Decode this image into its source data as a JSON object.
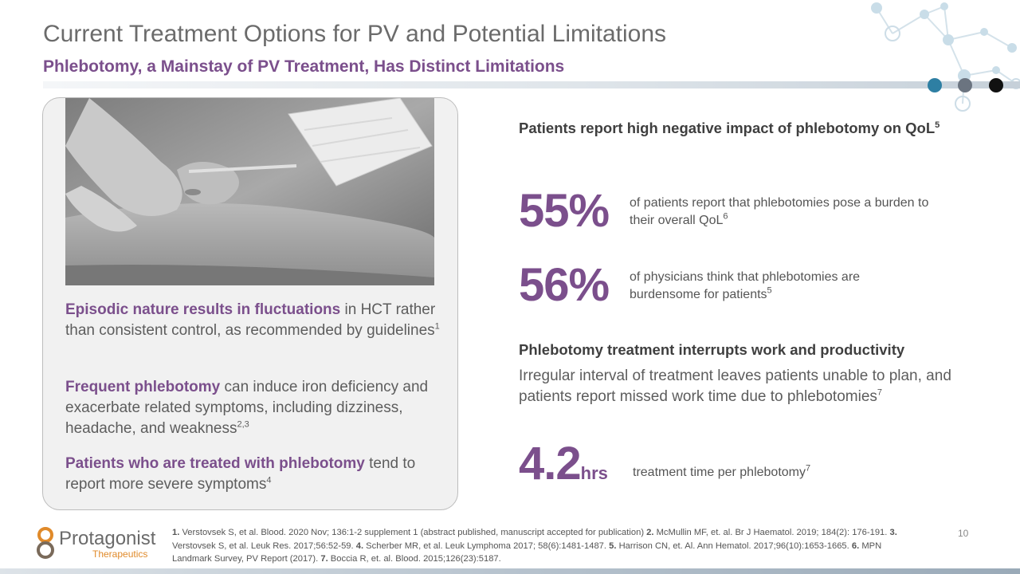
{
  "slide": {
    "title": "Current Treatment Options for PV and Potential Limitations",
    "subtitle": "Phlebotomy, a Mainstay of PV Treatment, Has Distinct Limitations",
    "page_number": "10"
  },
  "colors": {
    "accent_purple": "#7b4f8c",
    "dot_teal": "#2e7fa3",
    "dot_gray": "#6b7480",
    "dot_black": "#111111"
  },
  "left": {
    "photo_icon": "phlebotomy-photo",
    "p1": {
      "strong": "Episodic nature results in fluctuations",
      "rest": " in HCT rather than consistent control, as recommended by guidelines",
      "sup": "1"
    },
    "p2": {
      "strong": "Frequent phlebotomy",
      "rest": " can induce iron deficiency and exacerbate related symptoms, including dizziness, headache, and weakness",
      "sup": "2,3"
    },
    "p3": {
      "strong": "Patients who are treated with phlebotomy",
      "rest": " tend to report more severe symptoms",
      "sup": "4"
    }
  },
  "right": {
    "qol_heading": "Patients report high negative impact of phlebotomy on QoL",
    "qol_heading_sup": "5",
    "stat1": {
      "value": "55%",
      "text": "of patients report that phlebotomies pose a burden to their overall QoL",
      "sup": "6"
    },
    "stat2": {
      "value": "56%",
      "text": "of physicians think that phlebotomies are burdensome for patients",
      "sup": "5"
    },
    "work_heading": "Phlebotomy treatment interrupts work and productivity",
    "work_text": "Irregular interval of treatment leaves patients unable to plan, and patients report missed work time due to phlebotomies",
    "work_sup": "7",
    "stat3": {
      "value": "4.2",
      "unit": "hrs",
      "text": "treatment time per phlebotomy",
      "sup": "7"
    }
  },
  "footer": {
    "logo_name": "Protagonist",
    "logo_sub": "Therapeutics",
    "refs": [
      {
        "n": "1.",
        "t": " Verstovsek S, et al. Blood. 2020 Nov; 136:1-2 supplement 1 (abstract published, manuscript accepted for publication) "
      },
      {
        "n": "2.",
        "t": " McMullin MF, et. al. Br J Haematol. 2019; 184(2): 176-191. "
      },
      {
        "n": "3.",
        "t": " Verstovsek S, et al. Leuk Res. 2017;56:52-59. "
      },
      {
        "n": "4.",
        "t": " Scherber MR, et al. Leuk Lymphoma 2017; 58(6):1481-1487. "
      },
      {
        "n": "5.",
        "t": " Harrison CN, et. Al. Ann Hematol. 2017;96(10):1653-1665. "
      },
      {
        "n": "6.",
        "t": " MPN Landmark Survey, PV Report (2017). "
      },
      {
        "n": "7.",
        "t": " Boccia R, et. al. Blood. 2015;126(23):5187."
      }
    ]
  }
}
